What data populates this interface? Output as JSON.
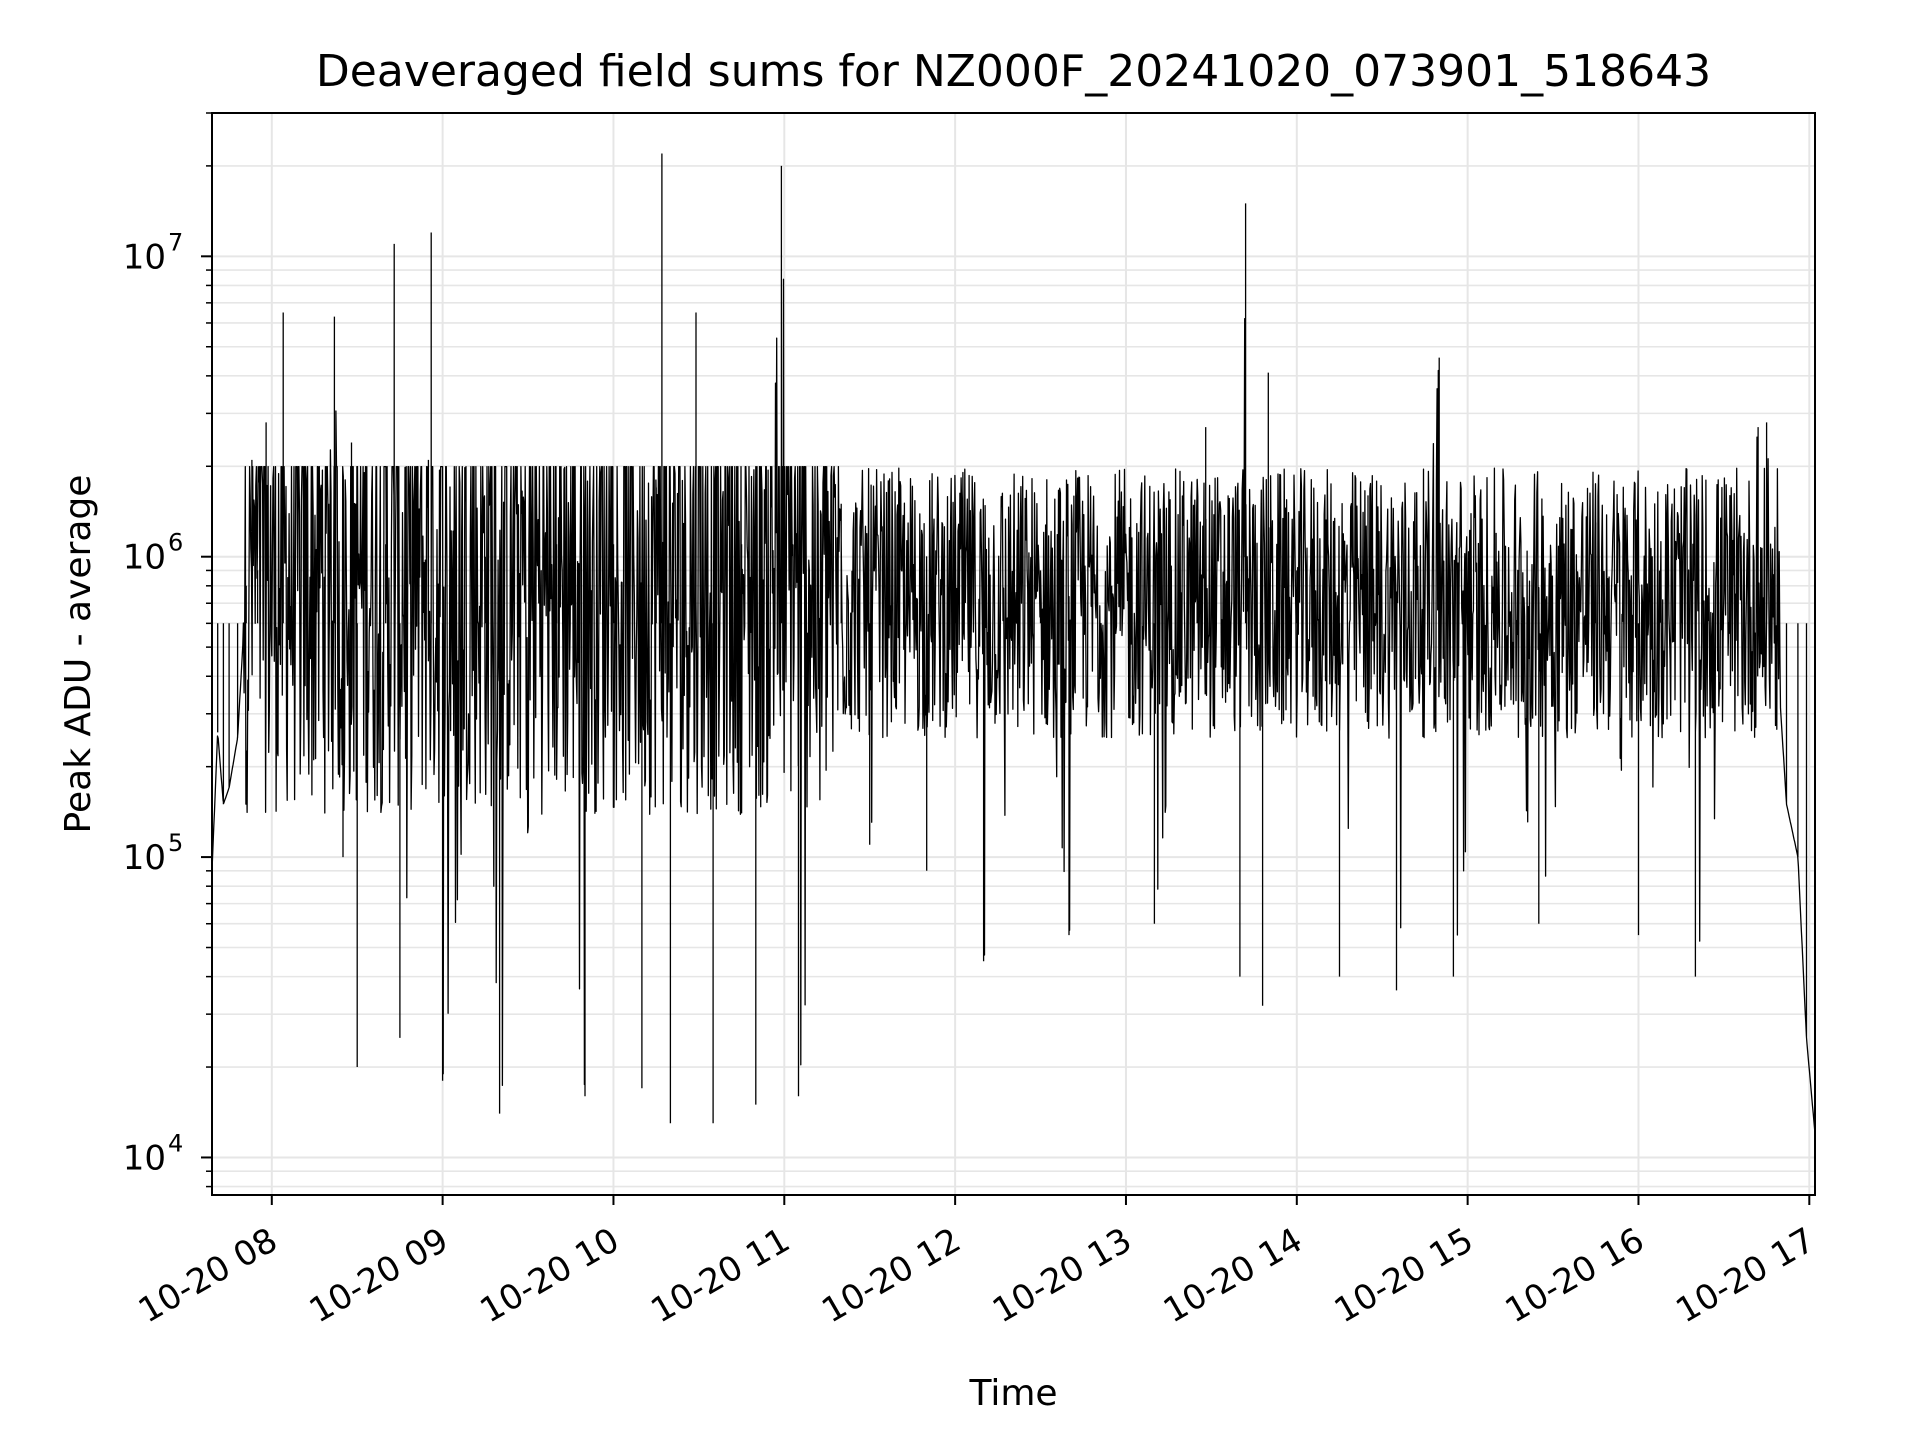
{
  "chart_data": {
    "type": "line",
    "title": "Deaveraged field sums for NZ000F_20241020_073901_518643",
    "xlabel": "Time",
    "ylabel": "Peak ADU - average",
    "yscale": "log",
    "xlim": [
      "2024-10-20 07:39",
      "2024-10-20 17:02"
    ],
    "ylim": [
      7500,
      30000000
    ],
    "grid": true,
    "line_color": "#000000",
    "grid_color": "#e6e6e6",
    "x_ticks": [
      "10-20 08",
      "10-20 09",
      "10-20 10",
      "10-20 11",
      "10-20 12",
      "10-20 13",
      "10-20 14",
      "10-20 15",
      "10-20 16",
      "10-20 17"
    ],
    "y_ticks": [
      {
        "value": 10000,
        "mantissa": "10",
        "exp": "4"
      },
      {
        "value": 100000,
        "mantissa": "10",
        "exp": "5"
      },
      {
        "value": 1000000,
        "mantissa": "10",
        "exp": "6"
      },
      {
        "value": 10000000,
        "mantissa": "10",
        "exp": "7"
      }
    ],
    "series": [
      {
        "values_summary": "dense noisy signal sampled over the run; representative points below",
        "points": [
          [
            "07:39",
            90000
          ],
          [
            "07:41",
            260000
          ],
          [
            "07:43",
            150000
          ],
          [
            "07:45",
            170000
          ],
          [
            "07:48",
            250000
          ],
          [
            "07:51",
            800000
          ],
          [
            "07:53",
            2100000
          ],
          [
            "07:55",
            900000
          ],
          [
            "07:58",
            2800000
          ],
          [
            "08:00",
            600000
          ],
          [
            "08:04",
            6500000
          ],
          [
            "08:10",
            300000
          ],
          [
            "08:20",
            1500000
          ],
          [
            "08:22",
            6300000
          ],
          [
            "08:25",
            100000
          ],
          [
            "08:28",
            2400000
          ],
          [
            "08:30",
            20000
          ],
          [
            "08:40",
            1100000
          ],
          [
            "08:43",
            11000000
          ],
          [
            "08:45",
            25000
          ],
          [
            "08:55",
            2100000
          ],
          [
            "08:56",
            12000000
          ],
          [
            "09:00",
            18000
          ],
          [
            "09:15",
            1000000
          ],
          [
            "09:20",
            14000
          ],
          [
            "09:40",
            1100000
          ],
          [
            "09:50",
            16000
          ],
          [
            "10:00",
            1100000
          ],
          [
            "10:10",
            17000
          ],
          [
            "10:15",
            1700000
          ],
          [
            "10:17",
            22000000
          ],
          [
            "10:20",
            13000
          ],
          [
            "10:29",
            6500000
          ],
          [
            "10:35",
            13000
          ],
          [
            "10:45",
            1100000
          ],
          [
            "10:50",
            15000
          ],
          [
            "10:59",
            20000000
          ],
          [
            "11:05",
            16000
          ],
          [
            "11:20",
            1500000
          ],
          [
            "11:30",
            110000
          ],
          [
            "11:40",
            1300000
          ],
          [
            "11:50",
            90000
          ],
          [
            "12:00",
            1000000
          ],
          [
            "12:10",
            45000
          ],
          [
            "12:30",
            900000
          ],
          [
            "12:40",
            55000
          ],
          [
            "12:55",
            800000
          ],
          [
            "13:10",
            60000
          ],
          [
            "13:25",
            1800000
          ],
          [
            "13:28",
            2700000
          ],
          [
            "13:40",
            40000
          ],
          [
            "13:42",
            15000000
          ],
          [
            "13:48",
            32000
          ],
          [
            "13:50",
            4100000
          ],
          [
            "14:00",
            900000
          ],
          [
            "14:15",
            40000
          ],
          [
            "14:25",
            1600000
          ],
          [
            "14:35",
            36000
          ],
          [
            "14:50",
            4600000
          ],
          [
            "14:55",
            40000
          ],
          [
            "15:10",
            1200000
          ],
          [
            "15:25",
            60000
          ],
          [
            "15:45",
            1300000
          ],
          [
            "16:00",
            55000
          ],
          [
            "16:15",
            1600000
          ],
          [
            "16:20",
            40000
          ],
          [
            "16:35",
            600000
          ],
          [
            "16:42",
            2700000
          ],
          [
            "16:45",
            2800000
          ],
          [
            "16:48",
            600000
          ],
          [
            "16:52",
            150000
          ],
          [
            "16:56",
            100000
          ],
          [
            "16:59",
            25000
          ],
          [
            "17:02",
            12000
          ]
        ]
      }
    ]
  }
}
